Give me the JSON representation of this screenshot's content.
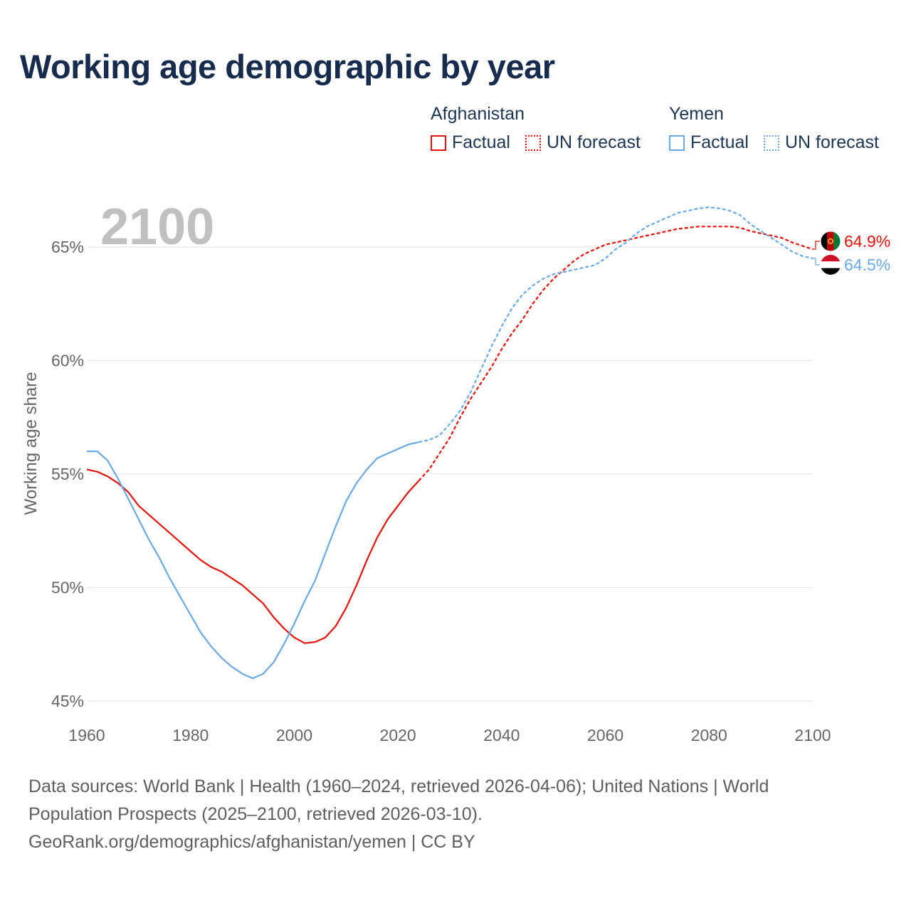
{
  "page": {
    "title": "Working age demographic by year",
    "footer_line1": "Data sources: World Bank | Health (1960–2024, retrieved 2026-04-06); United Nations | World",
    "footer_line2": "Population Prospects (2025–2100, retrieved 2026-03-10).",
    "footer_line3": "GeoRank.org/demographics/afghanistan/yemen | CC BY"
  },
  "legend": {
    "groups": [
      {
        "country": "Afghanistan",
        "factual_label": "Factual",
        "forecast_label": "UN forecast",
        "color": "#e3120b"
      },
      {
        "country": "Yemen",
        "factual_label": "Factual",
        "forecast_label": "UN forecast",
        "color": "#6aaae4"
      }
    ]
  },
  "chart_data": {
    "type": "line",
    "title": "Working age demographic by year",
    "xlabel": "",
    "ylabel": "Working age share",
    "year_watermark": "2100",
    "xlim": [
      1960,
      2100
    ],
    "ylim": [
      45,
      67.5
    ],
    "x_ticks": [
      "1960",
      "1980",
      "2000",
      "2020",
      "2040",
      "2060",
      "2080",
      "2100"
    ],
    "y_ticks": [
      {
        "value": 45,
        "label": "45%"
      },
      {
        "value": 50,
        "label": "50%"
      },
      {
        "value": 55,
        "label": "55%"
      },
      {
        "value": 60,
        "label": "60%"
      },
      {
        "value": 65,
        "label": "65%"
      }
    ],
    "forecast_start": 2024,
    "series": [
      {
        "name": "Afghanistan",
        "color": "#e3120b",
        "end_label": "64.9%",
        "flag": "afghanistan-flag-icon",
        "points": [
          [
            1960,
            55.2
          ],
          [
            1962,
            55.1
          ],
          [
            1964,
            54.9
          ],
          [
            1966,
            54.6
          ],
          [
            1968,
            54.2
          ],
          [
            1970,
            53.6
          ],
          [
            1972,
            53.2
          ],
          [
            1974,
            52.8
          ],
          [
            1976,
            52.4
          ],
          [
            1978,
            52.0
          ],
          [
            1980,
            51.6
          ],
          [
            1982,
            51.2
          ],
          [
            1984,
            50.9
          ],
          [
            1986,
            50.7
          ],
          [
            1988,
            50.4
          ],
          [
            1990,
            50.1
          ],
          [
            1992,
            49.7
          ],
          [
            1994,
            49.3
          ],
          [
            1996,
            48.7
          ],
          [
            1998,
            48.2
          ],
          [
            2000,
            47.8
          ],
          [
            2002,
            47.55
          ],
          [
            2004,
            47.6
          ],
          [
            2006,
            47.8
          ],
          [
            2008,
            48.3
          ],
          [
            2010,
            49.1
          ],
          [
            2012,
            50.1
          ],
          [
            2014,
            51.2
          ],
          [
            2016,
            52.2
          ],
          [
            2018,
            53.0
          ],
          [
            2020,
            53.6
          ],
          [
            2022,
            54.2
          ],
          [
            2024,
            54.7
          ],
          [
            2026,
            55.2
          ],
          [
            2028,
            55.9
          ],
          [
            2030,
            56.6
          ],
          [
            2032,
            57.5
          ],
          [
            2034,
            58.3
          ],
          [
            2036,
            59.0
          ],
          [
            2038,
            59.7
          ],
          [
            2040,
            60.5
          ],
          [
            2042,
            61.2
          ],
          [
            2044,
            61.8
          ],
          [
            2046,
            62.5
          ],
          [
            2048,
            63.1
          ],
          [
            2050,
            63.6
          ],
          [
            2052,
            64.0
          ],
          [
            2054,
            64.4
          ],
          [
            2056,
            64.7
          ],
          [
            2058,
            64.9
          ],
          [
            2060,
            65.1
          ],
          [
            2062,
            65.2
          ],
          [
            2064,
            65.3
          ],
          [
            2066,
            65.4
          ],
          [
            2068,
            65.5
          ],
          [
            2070,
            65.6
          ],
          [
            2072,
            65.7
          ],
          [
            2074,
            65.8
          ],
          [
            2076,
            65.85
          ],
          [
            2078,
            65.9
          ],
          [
            2080,
            65.9
          ],
          [
            2082,
            65.9
          ],
          [
            2084,
            65.9
          ],
          [
            2086,
            65.85
          ],
          [
            2088,
            65.7
          ],
          [
            2090,
            65.6
          ],
          [
            2092,
            65.5
          ],
          [
            2094,
            65.4
          ],
          [
            2096,
            65.2
          ],
          [
            2098,
            65.05
          ],
          [
            2100,
            64.9
          ]
        ]
      },
      {
        "name": "Yemen",
        "color": "#6aaae4",
        "end_label": "64.5%",
        "flag": "yemen-flag-icon",
        "points": [
          [
            1960,
            56.0
          ],
          [
            1962,
            56.0
          ],
          [
            1964,
            55.6
          ],
          [
            1966,
            54.8
          ],
          [
            1968,
            53.9
          ],
          [
            1970,
            53.0
          ],
          [
            1972,
            52.1
          ],
          [
            1974,
            51.3
          ],
          [
            1976,
            50.4
          ],
          [
            1978,
            49.6
          ],
          [
            1980,
            48.8
          ],
          [
            1982,
            48.0
          ],
          [
            1984,
            47.4
          ],
          [
            1986,
            46.9
          ],
          [
            1988,
            46.5
          ],
          [
            1990,
            46.2
          ],
          [
            1992,
            46.0
          ],
          [
            1994,
            46.2
          ],
          [
            1996,
            46.7
          ],
          [
            1998,
            47.5
          ],
          [
            2000,
            48.4
          ],
          [
            2002,
            49.4
          ],
          [
            2004,
            50.3
          ],
          [
            2006,
            51.5
          ],
          [
            2008,
            52.7
          ],
          [
            2010,
            53.8
          ],
          [
            2012,
            54.6
          ],
          [
            2014,
            55.2
          ],
          [
            2016,
            55.7
          ],
          [
            2018,
            55.9
          ],
          [
            2020,
            56.1
          ],
          [
            2022,
            56.3
          ],
          [
            2024,
            56.4
          ],
          [
            2026,
            56.5
          ],
          [
            2028,
            56.7
          ],
          [
            2030,
            57.2
          ],
          [
            2032,
            57.8
          ],
          [
            2034,
            58.6
          ],
          [
            2036,
            59.6
          ],
          [
            2038,
            60.6
          ],
          [
            2040,
            61.5
          ],
          [
            2042,
            62.3
          ],
          [
            2044,
            62.9
          ],
          [
            2046,
            63.3
          ],
          [
            2048,
            63.6
          ],
          [
            2050,
            63.8
          ],
          [
            2052,
            63.9
          ],
          [
            2054,
            64.0
          ],
          [
            2056,
            64.1
          ],
          [
            2058,
            64.2
          ],
          [
            2060,
            64.5
          ],
          [
            2062,
            64.9
          ],
          [
            2064,
            65.2
          ],
          [
            2066,
            65.6
          ],
          [
            2068,
            65.9
          ],
          [
            2070,
            66.1
          ],
          [
            2072,
            66.3
          ],
          [
            2074,
            66.5
          ],
          [
            2076,
            66.6
          ],
          [
            2078,
            66.7
          ],
          [
            2080,
            66.75
          ],
          [
            2082,
            66.7
          ],
          [
            2084,
            66.6
          ],
          [
            2086,
            66.4
          ],
          [
            2088,
            66.0
          ],
          [
            2090,
            65.7
          ],
          [
            2092,
            65.4
          ],
          [
            2094,
            65.1
          ],
          [
            2096,
            64.8
          ],
          [
            2098,
            64.6
          ],
          [
            2100,
            64.5
          ]
        ]
      }
    ]
  }
}
